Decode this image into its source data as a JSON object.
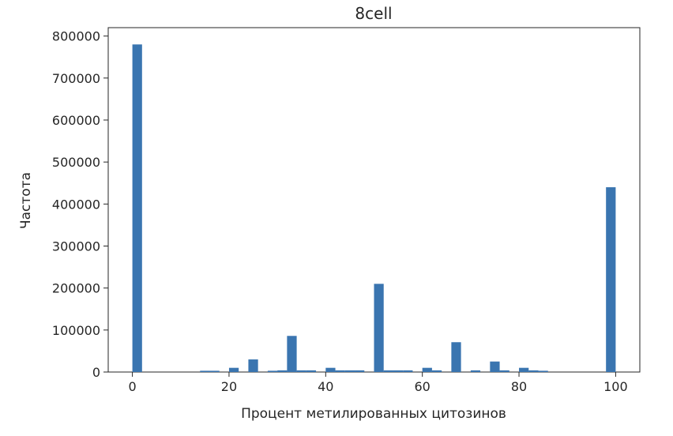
{
  "chart_data": {
    "type": "bar",
    "title": "8cell",
    "xlabel": "Процент метилированных цитозинов",
    "ylabel": "Частота",
    "xlim": [
      -5,
      105
    ],
    "ylim": [
      0,
      820000
    ],
    "xticks": [
      0,
      20,
      40,
      60,
      80,
      100
    ],
    "yticks": [
      0,
      100000,
      200000,
      300000,
      400000,
      500000,
      600000,
      700000,
      800000
    ],
    "bin_width": 2,
    "grid": false,
    "legend": "none",
    "color": "#3a75b0",
    "bins": [
      {
        "x": 0,
        "value": 780000
      },
      {
        "x": 14,
        "value": 3000
      },
      {
        "x": 16,
        "value": 3000
      },
      {
        "x": 20,
        "value": 10000
      },
      {
        "x": 24,
        "value": 30000
      },
      {
        "x": 28,
        "value": 3000
      },
      {
        "x": 30,
        "value": 4000
      },
      {
        "x": 32,
        "value": 86000
      },
      {
        "x": 34,
        "value": 4000
      },
      {
        "x": 36,
        "value": 4000
      },
      {
        "x": 40,
        "value": 10000
      },
      {
        "x": 42,
        "value": 4000
      },
      {
        "x": 44,
        "value": 4000
      },
      {
        "x": 46,
        "value": 4000
      },
      {
        "x": 50,
        "value": 210000
      },
      {
        "x": 52,
        "value": 4000
      },
      {
        "x": 54,
        "value": 4000
      },
      {
        "x": 56,
        "value": 4000
      },
      {
        "x": 60,
        "value": 10000
      },
      {
        "x": 62,
        "value": 4000
      },
      {
        "x": 66,
        "value": 71000
      },
      {
        "x": 70,
        "value": 4000
      },
      {
        "x": 74,
        "value": 25000
      },
      {
        "x": 76,
        "value": 4000
      },
      {
        "x": 80,
        "value": 10000
      },
      {
        "x": 82,
        "value": 4000
      },
      {
        "x": 84,
        "value": 3000
      },
      {
        "x": 98,
        "value": 440000
      }
    ]
  }
}
